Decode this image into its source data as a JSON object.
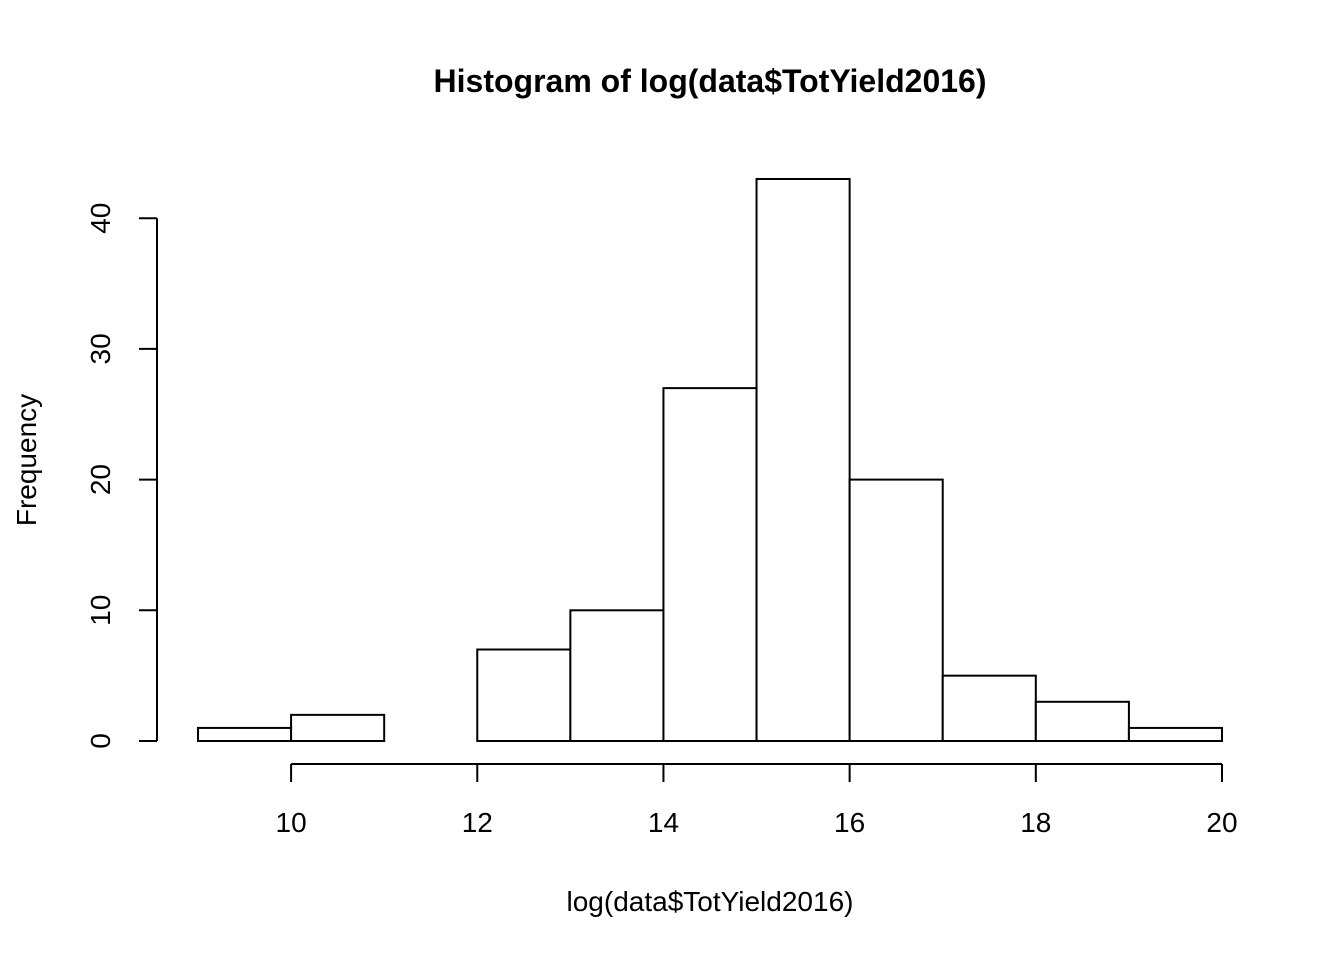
{
  "chart_data": {
    "type": "bar",
    "title": "Histogram of log(data$TotYield2016)",
    "xlabel": "log(data$TotYield2016)",
    "ylabel": "Frequency",
    "bins": [
      {
        "start": 9,
        "end": 10,
        "count": 1
      },
      {
        "start": 10,
        "end": 11,
        "count": 2
      },
      {
        "start": 11,
        "end": 12,
        "count": 0
      },
      {
        "start": 12,
        "end": 13,
        "count": 7
      },
      {
        "start": 13,
        "end": 14,
        "count": 10
      },
      {
        "start": 14,
        "end": 15,
        "count": 27
      },
      {
        "start": 15,
        "end": 16,
        "count": 43
      },
      {
        "start": 16,
        "end": 17,
        "count": 20
      },
      {
        "start": 17,
        "end": 18,
        "count": 5
      },
      {
        "start": 18,
        "end": 19,
        "count": 3
      },
      {
        "start": 19,
        "end": 20,
        "count": 1
      }
    ],
    "xlim": [
      9,
      20
    ],
    "ylim": [
      0,
      43
    ],
    "x_ticks": [
      10,
      12,
      14,
      16,
      18,
      20
    ],
    "y_ticks": [
      0,
      10,
      20,
      30,
      40
    ],
    "grid": false,
    "colors": {
      "bar_fill": "#ffffff",
      "bar_stroke": "#000000",
      "background": "#ffffff"
    }
  }
}
